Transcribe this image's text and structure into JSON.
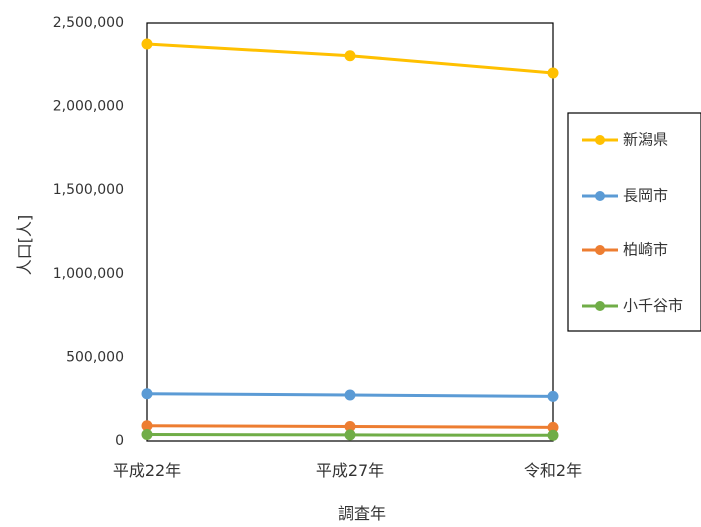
{
  "chart_data": {
    "type": "line",
    "title": "",
    "xlabel": "調査年",
    "ylabel": "人口[人]",
    "categories": [
      "平成22年",
      "平成27年",
      "令和2年"
    ],
    "ylim": [
      0,
      2500000
    ],
    "yticks": [
      "0",
      "500,000",
      "1,000,000",
      "1,500,000",
      "2,000,000",
      "2,500,000"
    ],
    "ytick_values": [
      0,
      500000,
      1000000,
      1500000,
      2000000,
      2500000
    ],
    "grid": false,
    "legend_position": "right",
    "series": [
      {
        "name": "新潟県",
        "color": "#FFC000",
        "values": [
          2374450,
          2304264,
          2201272
        ]
      },
      {
        "name": "長岡市",
        "color": "#5B9BD5",
        "values": [
          282674,
          275133,
          266936
        ]
      },
      {
        "name": "柏崎市",
        "color": "#ED7D31",
        "values": [
          91451,
          86833,
          81526
        ]
      },
      {
        "name": "小千谷市",
        "color": "#70AD47",
        "values": [
          38600,
          36498,
          34096
        ]
      }
    ]
  }
}
